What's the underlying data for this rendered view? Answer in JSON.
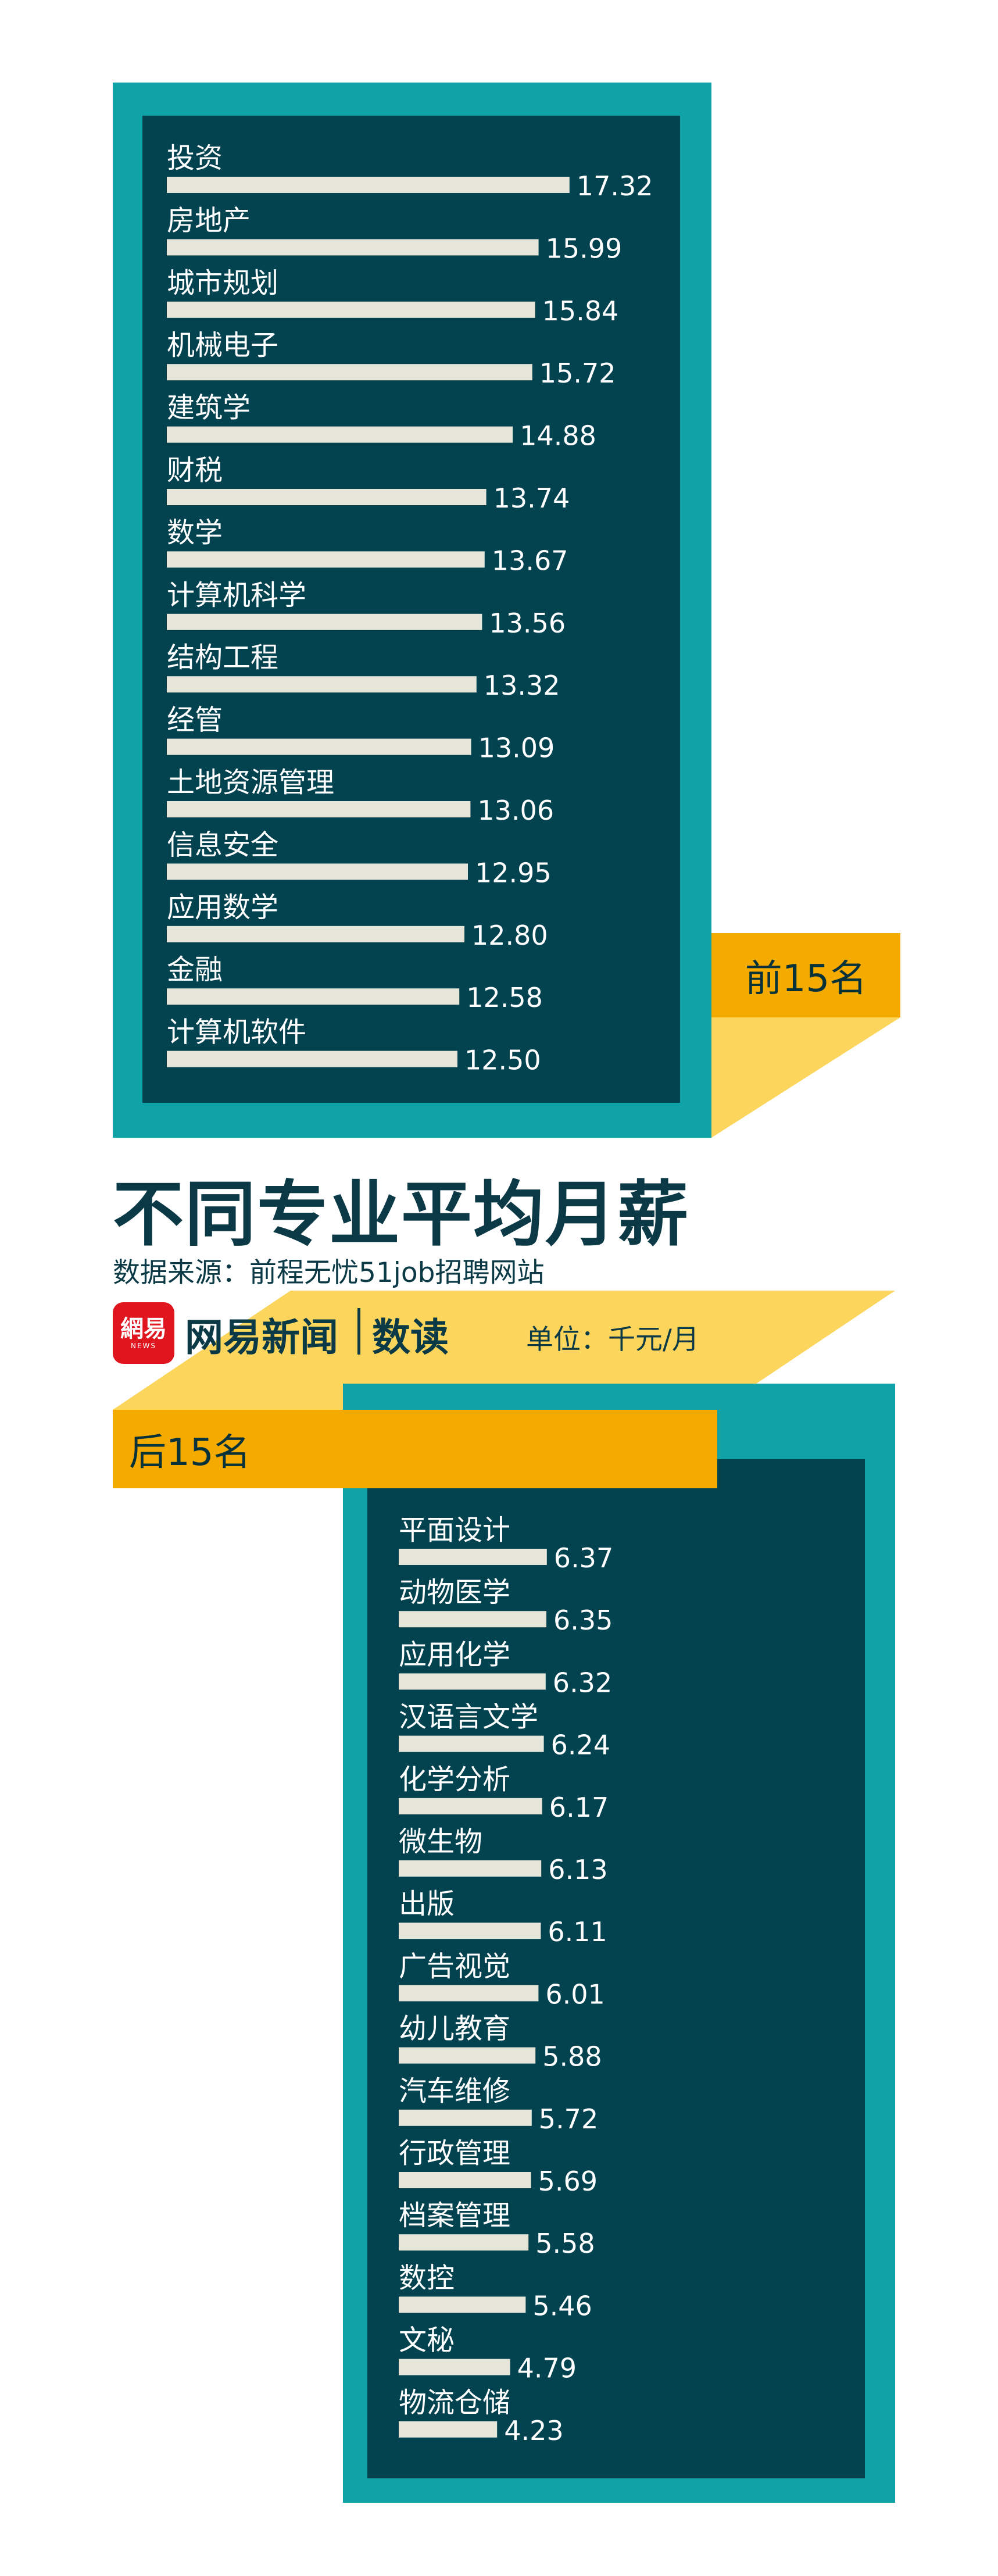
{
  "title": "不同专业平均月薪",
  "source": "数据来源：前程无忧51job招聘网站",
  "brand": {
    "logo_main": "網易",
    "logo_sub": "NEWS",
    "name": "网易新闻",
    "section": "数读"
  },
  "unit": "单位：千元/月",
  "colors": {
    "teal_frame": "#0fa3a8",
    "panel": "#03424f",
    "bar": "#e5e6d9",
    "tab_orange": "#f5aa00",
    "tab_yellow": "#fcd55c",
    "text_dark": "#0b3a46"
  },
  "chart_data": [
    {
      "type": "bar",
      "label": "前15名",
      "categories": [
        "投资",
        "房地产",
        "城市规划",
        "机械电子",
        "建筑学",
        "财税",
        "数学",
        "计算机科学",
        "结构工程",
        "经管",
        "土地资源管理",
        "信息安全",
        "应用数学",
        "金融",
        "计算机软件"
      ],
      "values": [
        17.32,
        15.99,
        15.84,
        15.72,
        14.88,
        13.74,
        13.67,
        13.56,
        13.32,
        13.09,
        13.06,
        12.95,
        12.8,
        12.58,
        12.5
      ],
      "value_labels": [
        "17.32",
        "15.99",
        "15.84",
        "15.72",
        "14.88",
        "13.74",
        "13.67",
        "13.56",
        "13.32",
        "13.09",
        "13.06",
        "12.95",
        "12.80",
        "12.58",
        "12.50"
      ]
    },
    {
      "type": "bar",
      "label": "后15名",
      "categories": [
        "平面设计",
        "动物医学",
        "应用化学",
        "汉语言文学",
        "化学分析",
        "微生物",
        "出版",
        "广告视觉",
        "幼儿教育",
        "汽车维修",
        "行政管理",
        "档案管理",
        "数控",
        "文秘",
        "物流仓储"
      ],
      "values": [
        6.37,
        6.35,
        6.32,
        6.24,
        6.17,
        6.13,
        6.11,
        6.01,
        5.88,
        5.72,
        5.69,
        5.58,
        5.46,
        4.79,
        4.23
      ],
      "value_labels": [
        "6.37",
        "6.35",
        "6.32",
        "6.24",
        "6.17",
        "6.13",
        "6.11",
        "6.01",
        "5.88",
        "5.72",
        "5.69",
        "5.58",
        "5.46",
        "4.79",
        "4.23"
      ]
    }
  ]
}
